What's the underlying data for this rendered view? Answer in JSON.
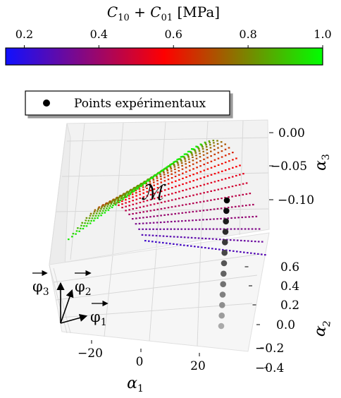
{
  "chart_data": {
    "type": "scatter",
    "colorbar": {
      "label": "C10 + C01 [MPa]",
      "label_base_1": "C",
      "label_sub_1": "10",
      "label_plus": " + ",
      "label_base_2": "C",
      "label_sub_2": "01",
      "label_unit": " [MPa]",
      "range": [
        0.15,
        1.0
      ],
      "ticks": [
        "0.2",
        "0.4",
        "0.6",
        "0.8",
        "1.0"
      ],
      "tick_values": [
        0.2,
        0.4,
        0.6,
        0.8,
        1.0
      ],
      "colors": [
        "#1010ff",
        "#ff0000",
        "#00ff00"
      ]
    },
    "legend": {
      "label": "Points expérimentaux",
      "placement": "top-left"
    },
    "surface_label": "ℳ",
    "axes": {
      "x": {
        "label": "α1",
        "label_base": "α",
        "label_sub": "1",
        "ticks": [
          "−20",
          "0",
          "20"
        ],
        "range": [
          -30,
          30
        ]
      },
      "y": {
        "label": "α2",
        "label_base": "α",
        "label_sub": "2",
        "ticks": [
          "−0.4",
          "−0.2",
          "0.0",
          "0.2",
          "0.4",
          "0.6"
        ],
        "range": [
          -0.4,
          0.7
        ]
      },
      "z": {
        "label": "α3",
        "label_base": "α",
        "label_sub": "3",
        "ticks": [
          "0.00",
          "−0.05",
          "−0.10"
        ],
        "range": [
          -0.14,
          0.01
        ]
      }
    },
    "basis_vectors": [
      {
        "name": "φ3",
        "base": "φ",
        "sub": "3"
      },
      {
        "name": "φ2",
        "base": "φ",
        "sub": "2"
      },
      {
        "name": "φ1",
        "base": "φ",
        "sub": "1"
      }
    ],
    "experimental_points": [
      {
        "x": 28,
        "y": 0.35,
        "z": -0.105
      },
      {
        "x": 28,
        "y": 0.35,
        "z": -0.11
      },
      {
        "x": 28,
        "y": 0.3,
        "z": -0.115
      },
      {
        "x": 28,
        "y": 0.25,
        "z": -0.12
      },
      {
        "x": 28,
        "y": 0.2,
        "z": -0.125
      },
      {
        "x": 28,
        "y": 0.15,
        "z": -0.13
      },
      {
        "x": 28,
        "y": 0.1,
        "z": -0.135
      },
      {
        "x": 28,
        "y": 0.05,
        "z": -0.14
      },
      {
        "x": 28,
        "y": 0.0,
        "z": -0.145
      },
      {
        "x": 28,
        "y": -0.05,
        "z": -0.15
      },
      {
        "x": 28,
        "y": -0.1,
        "z": -0.155
      },
      {
        "x": 28,
        "y": -0.2,
        "z": -0.16
      },
      {
        "x": 28,
        "y": -0.3,
        "z": -0.17
      }
    ]
  }
}
